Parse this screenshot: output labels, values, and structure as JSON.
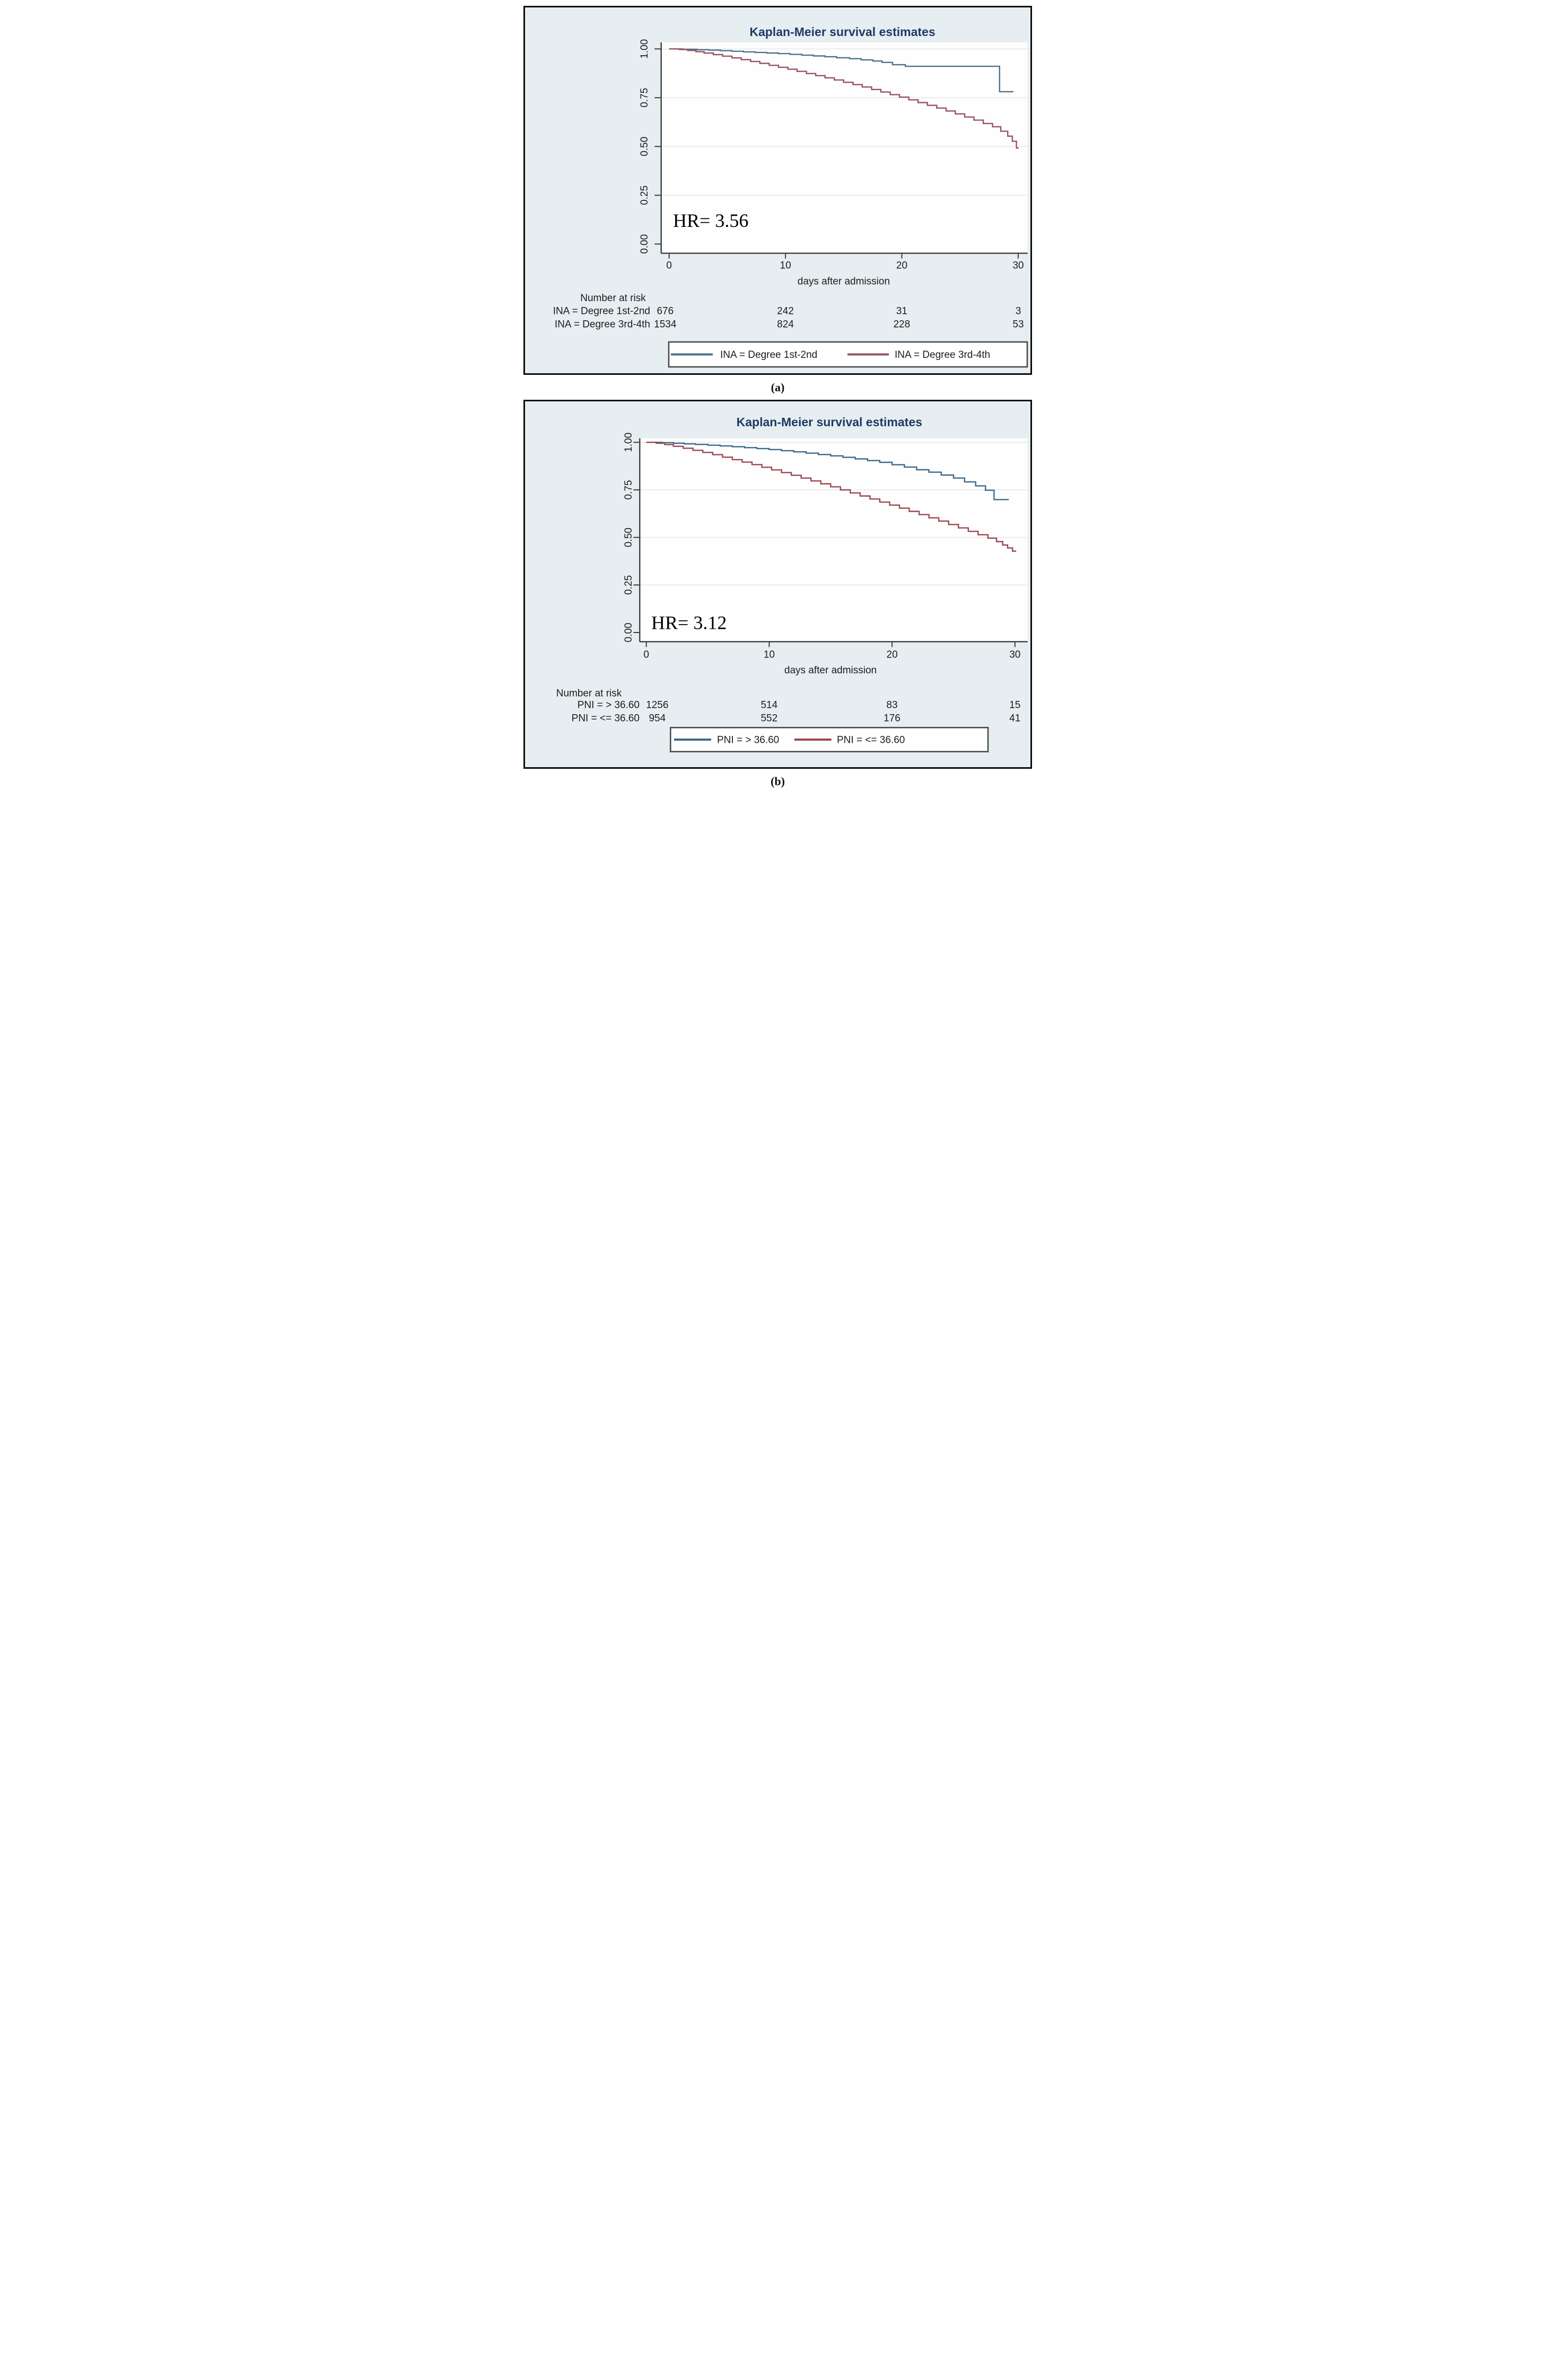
{
  "captions": [
    "(a)",
    "(b)"
  ],
  "colors": {
    "panel_background": "#e7eef1",
    "panel_border": "#0b0b0b",
    "plot_background": "#fefefe",
    "gridline": "#e5e8ea",
    "axis": "#3d3d3d",
    "text": "#1c1c1c",
    "title": "#1e3a66",
    "legend_border": "#4a4a4a"
  },
  "panels": [
    {
      "title": "Kaplan-Meier survival estimates",
      "hr_label": "HR= 3.56",
      "xlabel": "days after admission",
      "x_ticks": [
        "0",
        "10",
        "20",
        "30"
      ],
      "y_ticks": [
        "1.00",
        "0.75",
        "0.50",
        "0.25",
        "0.00"
      ],
      "risk_header": "Number at risk",
      "risk_rows": [
        {
          "label": "INA = Degree 1st-2nd",
          "counts": [
            "676",
            "242",
            "31",
            "3"
          ]
        },
        {
          "label": "INA = Degree 3rd-4th",
          "counts": [
            "1534",
            "824",
            "228",
            "53"
          ]
        }
      ],
      "legend": [
        {
          "label": "INA = Degree 1st-2nd",
          "color": "#4b7289"
        },
        {
          "label": "INA = Degree 3rd-4th",
          "color": "#97535d"
        }
      ]
    },
    {
      "title": "Kaplan-Meier survival estimates",
      "hr_label": "HR= 3.12",
      "xlabel": "days after admission",
      "x_ticks": [
        "0",
        "10",
        "20",
        "30"
      ],
      "y_ticks": [
        "1.00",
        "0.75",
        "0.50",
        "0.25",
        "0.00"
      ],
      "risk_header": "Number at risk",
      "risk_rows": [
        {
          "label": "PNI = > 36.60",
          "counts": [
            "1256",
            "514",
            "83",
            "15"
          ]
        },
        {
          "label": "PNI = <= 36.60",
          "counts": [
            "954",
            "552",
            "176",
            "41"
          ]
        }
      ],
      "legend": [
        {
          "label": "PNI = > 36.60",
          "color": "#3a698c"
        },
        {
          "label": "PNI = <= 36.60",
          "color": "#9c4752"
        }
      ]
    }
  ],
  "chart_data": [
    {
      "type": "line",
      "subtype": "kaplan-meier-step",
      "title": "Kaplan-Meier survival estimates",
      "xlabel": "days after admission",
      "ylabel": "",
      "xlim": [
        0,
        30
      ],
      "ylim": [
        0.0,
        1.0
      ],
      "x_ticks": [
        0,
        10,
        20,
        30
      ],
      "y_ticks": [
        1.0,
        0.75,
        0.5,
        0.25,
        0.0
      ],
      "grid": "horizontal",
      "legend_position": "bottom",
      "annotation": "HR= 3.56",
      "number_at_risk": {
        "INA = Degree 1st-2nd": [
          676,
          242,
          31,
          3
        ],
        "INA = Degree 3rd-4th": [
          1534,
          824,
          228,
          53
        ]
      },
      "series": [
        {
          "name": "INA = Degree 1st-2nd",
          "color": "#4b7289",
          "steps": [
            [
              0,
              1.0
            ],
            [
              1.2,
              0.998
            ],
            [
              2.4,
              0.996
            ],
            [
              3.4,
              0.994
            ],
            [
              4.4,
              0.991
            ],
            [
              5.4,
              0.988
            ],
            [
              6.4,
              0.985
            ],
            [
              7.4,
              0.982
            ],
            [
              8.4,
              0.979
            ],
            [
              9.4,
              0.976
            ],
            [
              10.4,
              0.972
            ],
            [
              11.4,
              0.968
            ],
            [
              12.4,
              0.964
            ],
            [
              13.4,
              0.96
            ],
            [
              14.4,
              0.955
            ],
            [
              15.5,
              0.95
            ],
            [
              16.5,
              0.944
            ],
            [
              17.5,
              0.938
            ],
            [
              18.3,
              0.931
            ],
            [
              19.2,
              0.919
            ],
            [
              20.3,
              0.911
            ],
            [
              28.4,
              0.781
            ],
            [
              29.6,
              0.781
            ]
          ]
        },
        {
          "name": "INA = Degree 3rd-4th",
          "color": "#97535d",
          "steps": [
            [
              0,
              1.0
            ],
            [
              0.9,
              0.997
            ],
            [
              1.6,
              0.992
            ],
            [
              2.3,
              0.986
            ],
            [
              3.0,
              0.979
            ],
            [
              3.8,
              0.971
            ],
            [
              4.6,
              0.963
            ],
            [
              5.4,
              0.954
            ],
            [
              6.2,
              0.945
            ],
            [
              7.0,
              0.936
            ],
            [
              7.8,
              0.926
            ],
            [
              8.6,
              0.916
            ],
            [
              9.4,
              0.906
            ],
            [
              10.2,
              0.896
            ],
            [
              11.0,
              0.885
            ],
            [
              11.8,
              0.874
            ],
            [
              12.6,
              0.863
            ],
            [
              13.4,
              0.852
            ],
            [
              14.2,
              0.841
            ],
            [
              15.0,
              0.829
            ],
            [
              15.8,
              0.817
            ],
            [
              16.6,
              0.805
            ],
            [
              17.4,
              0.792
            ],
            [
              18.2,
              0.779
            ],
            [
              19.0,
              0.766
            ],
            [
              19.8,
              0.753
            ],
            [
              20.6,
              0.739
            ],
            [
              21.4,
              0.725
            ],
            [
              22.2,
              0.711
            ],
            [
              23.0,
              0.697
            ],
            [
              23.8,
              0.682
            ],
            [
              24.6,
              0.667
            ],
            [
              25.4,
              0.651
            ],
            [
              26.2,
              0.635
            ],
            [
              27.0,
              0.618
            ],
            [
              27.8,
              0.601
            ],
            [
              28.5,
              0.578
            ],
            [
              29.1,
              0.553
            ],
            [
              29.5,
              0.527
            ],
            [
              29.85,
              0.492
            ],
            [
              30.05,
              0.492
            ]
          ]
        }
      ]
    },
    {
      "type": "line",
      "subtype": "kaplan-meier-step",
      "title": "Kaplan-Meier survival estimates",
      "xlabel": "days after admission",
      "ylabel": "",
      "xlim": [
        0,
        30
      ],
      "ylim": [
        0.0,
        1.0
      ],
      "x_ticks": [
        0,
        10,
        20,
        30
      ],
      "y_ticks": [
        1.0,
        0.75,
        0.5,
        0.25,
        0.0
      ],
      "grid": "horizontal",
      "legend_position": "bottom",
      "annotation": "HR= 3.12",
      "number_at_risk": {
        "PNI = > 36.60": [
          1256,
          514,
          83,
          15
        ],
        "PNI = <= 36.60": [
          954,
          552,
          176,
          41
        ]
      },
      "series": [
        {
          "name": "PNI = > 36.60",
          "color": "#3a698c",
          "steps": [
            [
              0,
              1.0
            ],
            [
              1.3,
              0.998
            ],
            [
              2.2,
              0.995
            ],
            [
              3.1,
              0.992
            ],
            [
              4.0,
              0.989
            ],
            [
              5.0,
              0.985
            ],
            [
              6.0,
              0.981
            ],
            [
              7.0,
              0.977
            ],
            [
              8.0,
              0.972
            ],
            [
              9.0,
              0.967
            ],
            [
              10.0,
              0.962
            ],
            [
              11.0,
              0.956
            ],
            [
              12.0,
              0.95
            ],
            [
              13.0,
              0.943
            ],
            [
              14.0,
              0.936
            ],
            [
              15.0,
              0.929
            ],
            [
              16.0,
              0.921
            ],
            [
              17.0,
              0.913
            ],
            [
              18.0,
              0.904
            ],
            [
              19.0,
              0.895
            ],
            [
              20.0,
              0.882
            ],
            [
              21.0,
              0.87
            ],
            [
              22.0,
              0.856
            ],
            [
              23.0,
              0.843
            ],
            [
              24.0,
              0.828
            ],
            [
              25.0,
              0.812
            ],
            [
              25.9,
              0.792
            ],
            [
              26.8,
              0.771
            ],
            [
              27.6,
              0.748
            ],
            [
              28.3,
              0.699
            ],
            [
              29.5,
              0.699
            ]
          ]
        },
        {
          "name": "PNI = <= 36.60",
          "color": "#9c4752",
          "steps": [
            [
              0,
              1.0
            ],
            [
              0.8,
              0.995
            ],
            [
              1.5,
              0.988
            ],
            [
              2.2,
              0.979
            ],
            [
              3.0,
              0.969
            ],
            [
              3.8,
              0.958
            ],
            [
              4.6,
              0.947
            ],
            [
              5.4,
              0.935
            ],
            [
              6.2,
              0.922
            ],
            [
              7.0,
              0.909
            ],
            [
              7.8,
              0.896
            ],
            [
              8.6,
              0.883
            ],
            [
              9.4,
              0.869
            ],
            [
              10.2,
              0.855
            ],
            [
              11.0,
              0.841
            ],
            [
              11.8,
              0.827
            ],
            [
              12.6,
              0.812
            ],
            [
              13.4,
              0.797
            ],
            [
              14.2,
              0.782
            ],
            [
              15.0,
              0.766
            ],
            [
              15.8,
              0.75
            ],
            [
              16.6,
              0.734
            ],
            [
              17.4,
              0.718
            ],
            [
              18.2,
              0.702
            ],
            [
              19.0,
              0.686
            ],
            [
              19.8,
              0.67
            ],
            [
              20.6,
              0.654
            ],
            [
              21.4,
              0.637
            ],
            [
              22.2,
              0.62
            ],
            [
              23.0,
              0.603
            ],
            [
              23.8,
              0.586
            ],
            [
              24.6,
              0.568
            ],
            [
              25.4,
              0.55
            ],
            [
              26.2,
              0.532
            ],
            [
              27.0,
              0.514
            ],
            [
              27.8,
              0.496
            ],
            [
              28.5,
              0.478
            ],
            [
              29.0,
              0.46
            ],
            [
              29.4,
              0.445
            ],
            [
              29.8,
              0.428
            ],
            [
              30.1,
              0.428
            ]
          ]
        }
      ]
    }
  ]
}
